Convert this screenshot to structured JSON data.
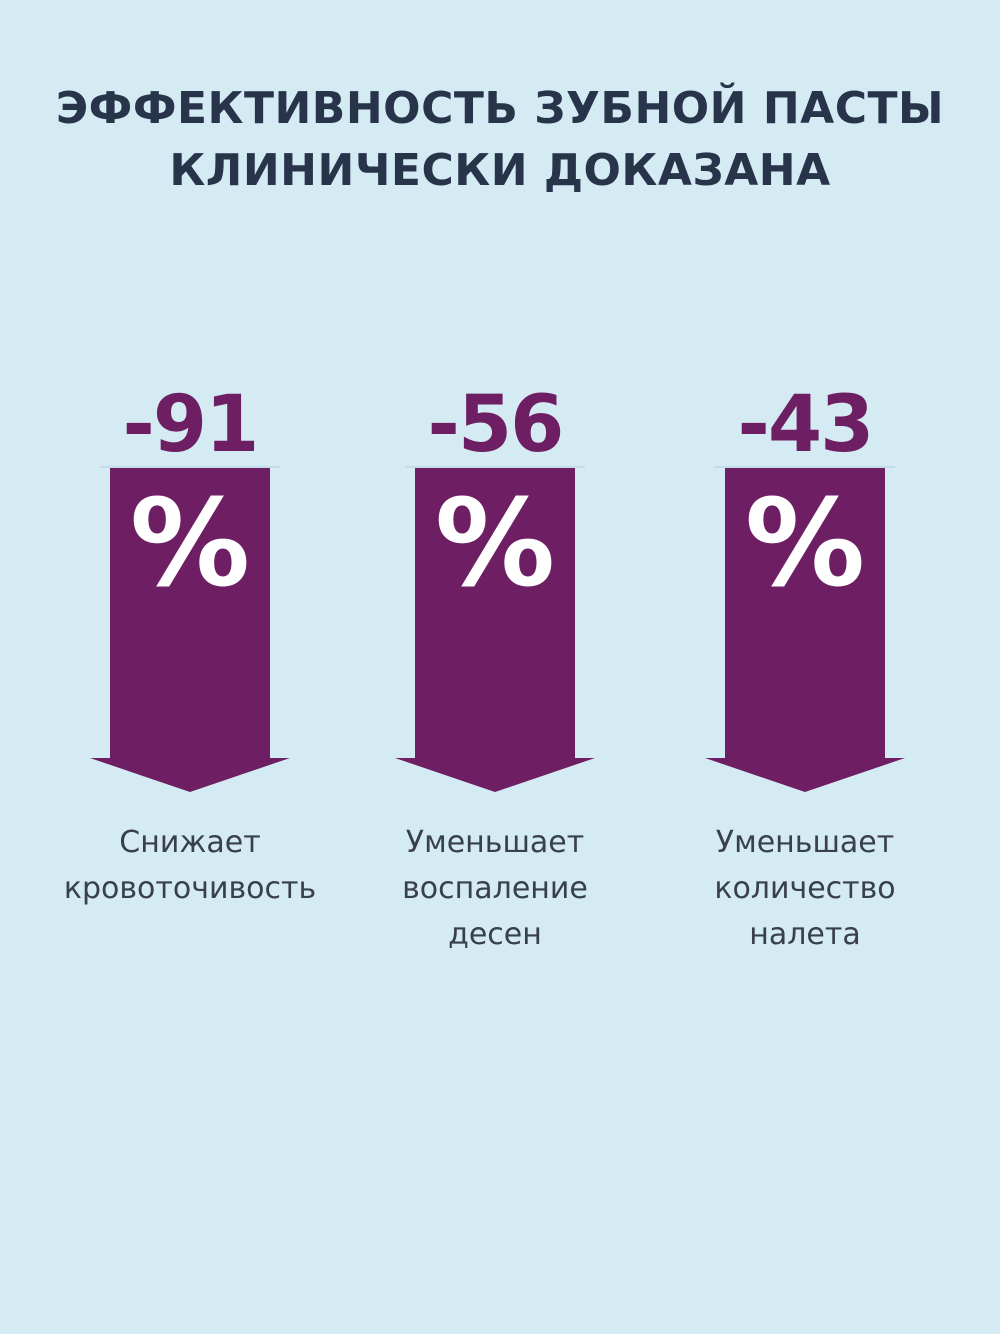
{
  "title": {
    "line1": "ЭФФЕКТИВНОСТЬ ЗУБНОЙ ПАСТЫ",
    "line2": "КЛИНИЧЕСКИ ДОКАЗАНА"
  },
  "colors": {
    "background": "#d4ebf4",
    "accent": "#6e1e62",
    "title_text": "#27344a",
    "caption_text": "#39404b"
  },
  "stats": [
    {
      "value": "-91",
      "unit": "%",
      "caption": [
        "Снижает",
        "кровоточивость"
      ]
    },
    {
      "value": "-56",
      "unit": "%",
      "caption": [
        "Уменьшает",
        "воспаление",
        "десен"
      ]
    },
    {
      "value": "-43",
      "unit": "%",
      "caption": [
        "Уменьшает",
        "количество",
        "налета"
      ]
    }
  ]
}
